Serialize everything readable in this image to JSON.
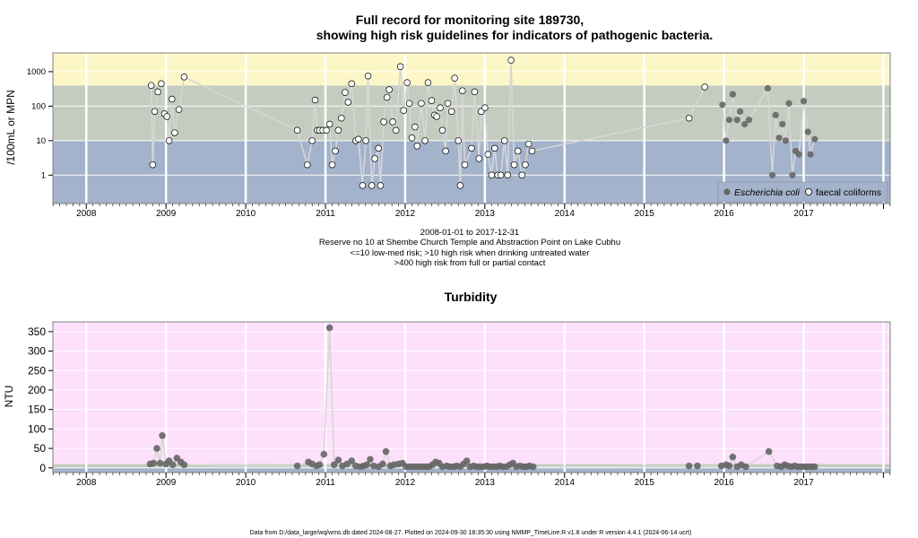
{
  "chart_data": [
    {
      "type": "scatter",
      "title_lines": [
        "Full record for monitoring site 189730,",
        "showing high risk guidelines for indicators of pathogenic bacteria."
      ],
      "ylabel": "/100mL or MPN",
      "y_scale": "log",
      "ylim": [
        0.15,
        3500
      ],
      "xlim": [
        "2007-08-01",
        "2018-02-01"
      ],
      "x_ticks": [
        "2008",
        "2009",
        "2010",
        "2011",
        "2012",
        "2013",
        "2014",
        "2015",
        "2016",
        "2017"
      ],
      "y_ticks": [
        "1",
        "10",
        "100",
        "1000"
      ],
      "bands": [
        {
          "from": 0.15,
          "to": 10,
          "color": "#a3b3cc"
        },
        {
          "from": 10,
          "to": 400,
          "color": "#c3ccbe"
        },
        {
          "from": 400,
          "to": 3500,
          "color": "#fdf6c7"
        }
      ],
      "grid": true,
      "legend_position": "bottom-right",
      "legend": [
        "Escherichia coli",
        "faecal coliforms"
      ],
      "captions": [
        "2008-01-01 to 2017-12-31",
        "Reserve no 10 at Shembe Church Temple and Abstraction Point on Lake Cubhu",
        "<=10 low-med risk; >10 high risk when drinking untreated water",
        ">400 high risk from full or partial contact"
      ],
      "series": [
        {
          "name": "faecal coliforms",
          "marker": "open-circle",
          "points": [
            [
              "2008-10-25",
              400
            ],
            [
              "2008-11-01",
              2
            ],
            [
              "2008-11-10",
              70
            ],
            [
              "2008-11-25",
              260
            ],
            [
              "2008-12-10",
              450
            ],
            [
              "2008-12-25",
              60
            ],
            [
              "2009-01-05",
              50
            ],
            [
              "2009-01-15",
              10
            ],
            [
              "2009-01-28",
              160
            ],
            [
              "2009-02-10",
              17
            ],
            [
              "2009-03-01",
              80
            ],
            [
              "2009-03-25",
              700
            ],
            [
              "2010-08-25",
              20
            ],
            [
              "2010-10-10",
              2
            ],
            [
              "2010-11-01",
              10
            ],
            [
              "2010-11-15",
              150
            ],
            [
              "2010-11-25",
              20
            ],
            [
              "2010-12-05",
              20
            ],
            [
              "2010-12-20",
              20
            ],
            [
              "2011-01-05",
              20
            ],
            [
              "2011-01-20",
              30
            ],
            [
              "2011-02-01",
              2
            ],
            [
              "2011-02-15",
              5
            ],
            [
              "2011-03-01",
              20
            ],
            [
              "2011-03-15",
              45
            ],
            [
              "2011-04-01",
              250
            ],
            [
              "2011-04-15",
              130
            ],
            [
              "2011-05-01",
              450
            ],
            [
              "2011-05-20",
              10
            ],
            [
              "2011-06-01",
              11
            ],
            [
              "2011-06-20",
              0.5
            ],
            [
              "2011-07-05",
              10
            ],
            [
              "2011-07-15",
              750
            ],
            [
              "2011-08-01",
              0.5
            ],
            [
              "2011-08-15",
              3
            ],
            [
              "2011-09-01",
              6
            ],
            [
              "2011-09-10",
              0.5
            ],
            [
              "2011-09-25",
              35
            ],
            [
              "2011-10-10",
              180
            ],
            [
              "2011-10-20",
              300
            ],
            [
              "2011-11-05",
              35
            ],
            [
              "2011-11-20",
              20
            ],
            [
              "2011-12-10",
              1400
            ],
            [
              "2011-12-25",
              75
            ],
            [
              "2012-01-10",
              480
            ],
            [
              "2012-01-20",
              120
            ],
            [
              "2012-02-01",
              12
            ],
            [
              "2012-02-15",
              25
            ],
            [
              "2012-02-25",
              7
            ],
            [
              "2012-03-15",
              120
            ],
            [
              "2012-04-01",
              10
            ],
            [
              "2012-04-15",
              480
            ],
            [
              "2012-05-01",
              145
            ],
            [
              "2012-05-15",
              55
            ],
            [
              "2012-05-25",
              50
            ],
            [
              "2012-06-10",
              90
            ],
            [
              "2012-06-20",
              20
            ],
            [
              "2012-07-05",
              5
            ],
            [
              "2012-07-15",
              120
            ],
            [
              "2012-08-01",
              70
            ],
            [
              "2012-08-15",
              650
            ],
            [
              "2012-09-01",
              10
            ],
            [
              "2012-09-10",
              0.5
            ],
            [
              "2012-09-20",
              280
            ],
            [
              "2012-10-01",
              2
            ],
            [
              "2012-11-01",
              6
            ],
            [
              "2012-11-15",
              260
            ],
            [
              "2012-12-05",
              3
            ],
            [
              "2012-12-15",
              70
            ],
            [
              "2013-01-01",
              90
            ],
            [
              "2013-01-15",
              4
            ],
            [
              "2013-02-01",
              1
            ],
            [
              "2013-02-15",
              6
            ],
            [
              "2013-03-01",
              1
            ],
            [
              "2013-03-15",
              1
            ],
            [
              "2013-04-01",
              10
            ],
            [
              "2013-04-15",
              1
            ],
            [
              "2013-05-01",
              2150
            ],
            [
              "2013-05-15",
              2
            ],
            [
              "2013-06-01",
              5
            ],
            [
              "2013-06-20",
              1
            ],
            [
              "2013-07-05",
              2
            ],
            [
              "2013-07-20",
              8
            ],
            [
              "2013-08-05",
              5
            ],
            [
              "2015-07-25",
              45
            ],
            [
              "2015-10-05",
              360
            ]
          ]
        },
        {
          "name": "Escherichia coli",
          "marker": "filled-circle",
          "points": [
            [
              "2015-12-25",
              110
            ],
            [
              "2016-01-10",
              10
            ],
            [
              "2016-01-25",
              40
            ],
            [
              "2016-02-10",
              220
            ],
            [
              "2016-03-01",
              40
            ],
            [
              "2016-03-15",
              70
            ],
            [
              "2016-04-05",
              30
            ],
            [
              "2016-04-25",
              40
            ],
            [
              "2016-07-20",
              330
            ],
            [
              "2016-08-10",
              1
            ],
            [
              "2016-08-25",
              55
            ],
            [
              "2016-09-10",
              12
            ],
            [
              "2016-09-25",
              30
            ],
            [
              "2016-10-10",
              10
            ],
            [
              "2016-10-25",
              120
            ],
            [
              "2016-11-10",
              1
            ],
            [
              "2016-11-25",
              5
            ],
            [
              "2016-12-10",
              4
            ],
            [
              "2017-01-01",
              140
            ],
            [
              "2017-01-20",
              18
            ],
            [
              "2017-02-01",
              4
            ],
            [
              "2017-02-20",
              11
            ]
          ]
        }
      ]
    },
    {
      "type": "scatter",
      "title": "Turbidity",
      "ylabel": "NTU",
      "ylim": [
        -12,
        375
      ],
      "xlim": [
        "2007-08-01",
        "2018-02-01"
      ],
      "x_ticks": [
        "2008",
        "2009",
        "2010",
        "2011",
        "2012",
        "2013",
        "2014",
        "2015",
        "2016",
        "2017"
      ],
      "y_ticks": [
        "0",
        "50",
        "100",
        "150",
        "200",
        "250",
        "300",
        "350"
      ],
      "bands": [
        {
          "from": -12,
          "to": 0,
          "color": "#a3b3cc"
        },
        {
          "from": 0,
          "to": 10,
          "color": "#c3ccbe"
        },
        {
          "from": 10,
          "to": 375,
          "color": "#fde0fc"
        }
      ],
      "grid": true,
      "series": [
        {
          "marker": "filled-circle",
          "points": [
            [
              "2008-10-20",
              10
            ],
            [
              "2008-11-05",
              12
            ],
            [
              "2008-11-20",
              50
            ],
            [
              "2008-12-05",
              12
            ],
            [
              "2008-12-15",
              83
            ],
            [
              "2009-01-01",
              10
            ],
            [
              "2009-01-15",
              18
            ],
            [
              "2009-02-01",
              8
            ],
            [
              "2009-02-20",
              25
            ],
            [
              "2009-03-10",
              15
            ],
            [
              "2009-03-25",
              8
            ],
            [
              "2010-08-25",
              5
            ],
            [
              "2010-10-15",
              15
            ],
            [
              "2010-11-01",
              10
            ],
            [
              "2010-11-20",
              5
            ],
            [
              "2010-12-05",
              8
            ],
            [
              "2010-12-25",
              35
            ],
            [
              "2011-01-20",
              360
            ],
            [
              "2011-02-10",
              8
            ],
            [
              "2011-03-01",
              20
            ],
            [
              "2011-03-20",
              5
            ],
            [
              "2011-04-10",
              10
            ],
            [
              "2011-05-01",
              18
            ],
            [
              "2011-05-20",
              5
            ],
            [
              "2011-06-10",
              3
            ],
            [
              "2011-06-25",
              5
            ],
            [
              "2011-07-10",
              8
            ],
            [
              "2011-07-25",
              22
            ],
            [
              "2011-08-10",
              5
            ],
            [
              "2011-09-01",
              3
            ],
            [
              "2011-09-20",
              10
            ],
            [
              "2011-10-05",
              42
            ],
            [
              "2011-10-25",
              5
            ],
            [
              "2011-11-10",
              8
            ],
            [
              "2011-12-01",
              10
            ],
            [
              "2011-12-20",
              12
            ],
            [
              "2012-01-05",
              3
            ],
            [
              "2012-01-20",
              3
            ],
            [
              "2012-02-05",
              3
            ],
            [
              "2012-02-20",
              3
            ],
            [
              "2012-03-05",
              3
            ],
            [
              "2012-03-20",
              3
            ],
            [
              "2012-04-05",
              3
            ],
            [
              "2012-04-20",
              3
            ],
            [
              "2012-05-05",
              8
            ],
            [
              "2012-05-20",
              15
            ],
            [
              "2012-06-05",
              12
            ],
            [
              "2012-06-20",
              3
            ],
            [
              "2012-07-10",
              5
            ],
            [
              "2012-07-25",
              3
            ],
            [
              "2012-08-10",
              3
            ],
            [
              "2012-08-25",
              5
            ],
            [
              "2012-09-10",
              3
            ],
            [
              "2012-09-25",
              10
            ],
            [
              "2012-10-10",
              18
            ],
            [
              "2012-10-25",
              3
            ],
            [
              "2012-11-10",
              5
            ],
            [
              "2012-11-25",
              3
            ],
            [
              "2012-12-10",
              3
            ],
            [
              "2012-12-25",
              3
            ],
            [
              "2013-01-10",
              5
            ],
            [
              "2013-01-25",
              3
            ],
            [
              "2013-02-10",
              3
            ],
            [
              "2013-02-25",
              3
            ],
            [
              "2013-03-10",
              5
            ],
            [
              "2013-03-25",
              3
            ],
            [
              "2013-04-10",
              3
            ],
            [
              "2013-04-25",
              8
            ],
            [
              "2013-05-10",
              12
            ],
            [
              "2013-05-25",
              3
            ],
            [
              "2013-06-10",
              5
            ],
            [
              "2013-06-25",
              3
            ],
            [
              "2013-07-10",
              3
            ],
            [
              "2013-07-25",
              5
            ],
            [
              "2013-08-10",
              3
            ],
            [
              "2015-07-25",
              5
            ],
            [
              "2015-09-01",
              5
            ],
            [
              "2015-12-20",
              5
            ],
            [
              "2016-01-10",
              8
            ],
            [
              "2016-01-25",
              5
            ],
            [
              "2016-02-10",
              28
            ],
            [
              "2016-03-01",
              3
            ],
            [
              "2016-03-20",
              8
            ],
            [
              "2016-04-10",
              3
            ],
            [
              "2016-07-25",
              42
            ],
            [
              "2016-09-01",
              5
            ],
            [
              "2016-09-20",
              3
            ],
            [
              "2016-10-05",
              8
            ],
            [
              "2016-10-20",
              5
            ],
            [
              "2016-11-05",
              3
            ],
            [
              "2016-11-20",
              5
            ],
            [
              "2016-12-05",
              3
            ],
            [
              "2016-12-20",
              3
            ],
            [
              "2017-01-05",
              3
            ],
            [
              "2017-01-20",
              3
            ],
            [
              "2017-02-05",
              3
            ],
            [
              "2017-02-20",
              3
            ]
          ]
        }
      ]
    }
  ],
  "footer": "Data from D:/data_large/wq/wms.db dated 2024-08-27. Plotted on 2024-09-30 18:35:30 using NMMP_TimeLine.R v1.8 under R version 4.4.1 (2024-06-14 ucrt)"
}
